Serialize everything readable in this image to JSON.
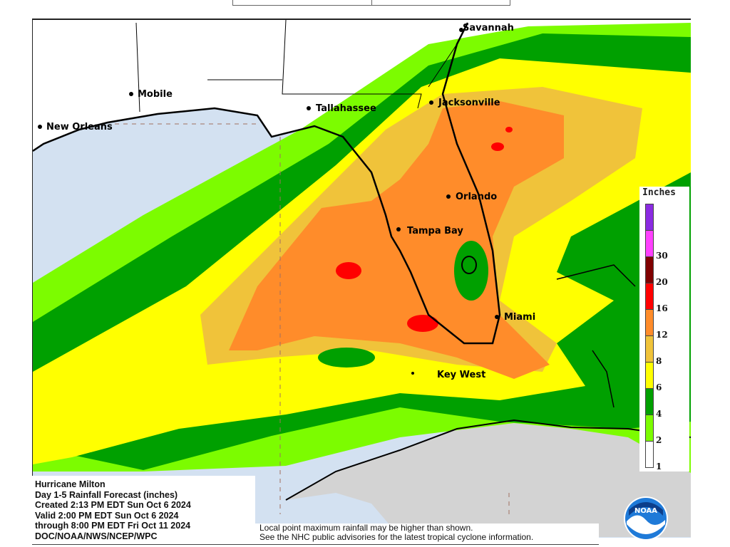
{
  "map": {
    "cities": [
      {
        "name": "Savannah"
      },
      {
        "name": "Mobile"
      },
      {
        "name": "Tallahassee"
      },
      {
        "name": "Jacksonville"
      },
      {
        "name": "New Orleans"
      },
      {
        "name": "Orlando"
      },
      {
        "name": "Tampa Bay"
      },
      {
        "name": "Miami"
      },
      {
        "name": "Key West"
      }
    ],
    "colors": {
      "water": "#d3e1f1",
      "land": "#ffffff",
      "cuba": "#d3d3d3"
    }
  },
  "legend": {
    "title": "Inches",
    "bins": [
      {
        "label": "",
        "color": "#8b2be2"
      },
      {
        "label": "30",
        "color": "#ff40ff"
      },
      {
        "label": "20",
        "color": "#800000"
      },
      {
        "label": "16",
        "color": "#ff0000"
      },
      {
        "label": "12",
        "color": "#ff8c2a"
      },
      {
        "label": "8",
        "color": "#f0c33a"
      },
      {
        "label": "6",
        "color": "#ffff00"
      },
      {
        "label": "4",
        "color": "#00a000"
      },
      {
        "label": "2",
        "color": "#7cfc00"
      },
      {
        "label": "1",
        "color": "#ffffff"
      }
    ]
  },
  "info": {
    "line1": "Hurricane Milton",
    "line2": "Day 1-5 Rainfall Forecast (inches)",
    "line3": "Created 2:13 PM EDT Sun Oct 6 2024",
    "line4": "Valid 2:00 PM EDT Sun Oct 6 2024",
    "line5": "through 8:00 PM EDT Fri Oct 11 2024",
    "line6": "DOC/NOAA/NWS/NCEP/WPC"
  },
  "notes": {
    "line1": "Local point maximum rainfall may be higher than shown.",
    "line2": "See the NHC public advisories for the latest tropical cyclone information."
  },
  "logo": {
    "text": "NOAA"
  }
}
